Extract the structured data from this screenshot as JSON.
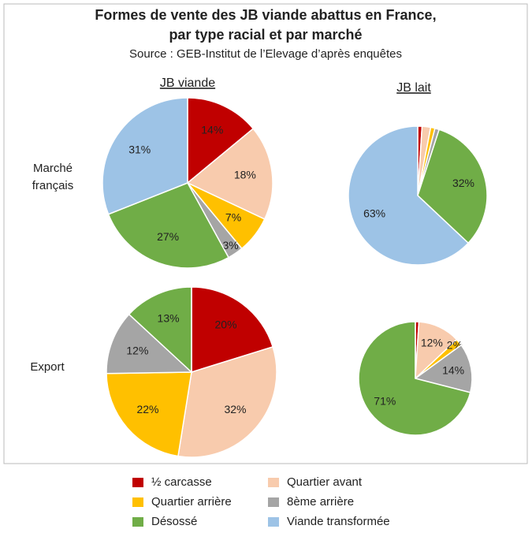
{
  "header": {
    "title": "Formes de vente des JB viande abattus en France,",
    "title2": "par type racial et par marché",
    "subtitle": "Source : GEB-Institut de l’Elevage d’après enquêtes"
  },
  "columns": [
    "JB viande",
    "JB lait"
  ],
  "rows": [
    "Marché français",
    "Export"
  ],
  "legend": {
    "categories": [
      "½ carcasse",
      "Quartier avant",
      "Quartier arrière",
      "8ème arrière",
      "Désossé",
      "Viande transformée"
    ],
    "colors": [
      "#c00000",
      "#f8cbad",
      "#ffc000",
      "#a5a5a5",
      "#70ad47",
      "#9dc3e6"
    ]
  },
  "chart_data": [
    {
      "type": "pie",
      "values": [
        14,
        18,
        7,
        3,
        27,
        31
      ],
      "value_labels": [
        "14%",
        "18%",
        "7%",
        "3%",
        "27%",
        "31%"
      ]
    },
    {
      "type": "pie",
      "values": [
        1,
        2,
        1,
        1,
        32,
        63
      ],
      "value_labels": [
        null,
        null,
        null,
        null,
        "32%",
        "63%"
      ]
    },
    {
      "type": "pie",
      "values": [
        20,
        32,
        22,
        12,
        13,
        0
      ],
      "value_labels": [
        "20%",
        "32%",
        "22%",
        "12%",
        "13%",
        null
      ]
    },
    {
      "type": "pie",
      "values": [
        1,
        12,
        2,
        14,
        71,
        0
      ],
      "value_labels": [
        null,
        "12%",
        "2%",
        "14%",
        "71%",
        null
      ]
    }
  ]
}
